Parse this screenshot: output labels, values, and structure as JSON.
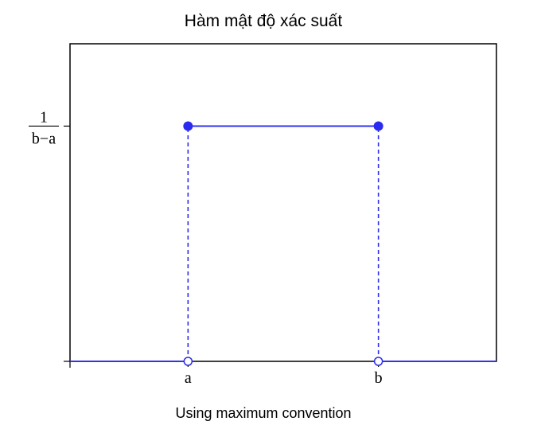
{
  "chart_data": {
    "type": "line",
    "title": "Hàm mật độ xác suất",
    "caption": "Using maximum convention",
    "xlabel": "",
    "ylabel": "",
    "x_ticks": [
      {
        "value": 0,
        "label": "a"
      },
      {
        "value": 1,
        "label": "b"
      }
    ],
    "y_ticks": [
      {
        "value": 0,
        "label": ""
      },
      {
        "value": 1,
        "label_numerator": "1",
        "label_denominator": "b−a"
      }
    ],
    "xlim": [
      -0.62,
      1.62
    ],
    "ylim": [
      0,
      1.35
    ],
    "grid": false,
    "series": [
      {
        "segments": [
          {
            "x": [
              -0.62,
              0
            ],
            "y": [
              0,
              0
            ]
          },
          {
            "x": [
              0,
              1
            ],
            "y": [
              1,
              1
            ]
          },
          {
            "x": [
              1,
              1.62
            ],
            "y": [
              0,
              0
            ]
          }
        ],
        "dashed_verticals": [
          {
            "x": 0,
            "y": [
              0,
              1
            ]
          },
          {
            "x": 1,
            "y": [
              0,
              1
            ]
          }
        ],
        "filled_points": [
          {
            "x": 0,
            "y": 1
          },
          {
            "x": 1,
            "y": 1
          }
        ],
        "open_points": [
          {
            "x": 0,
            "y": 0
          },
          {
            "x": 1,
            "y": 0
          }
        ]
      }
    ],
    "colors": {
      "line": "#2a2af0",
      "axes": "#000000"
    }
  }
}
